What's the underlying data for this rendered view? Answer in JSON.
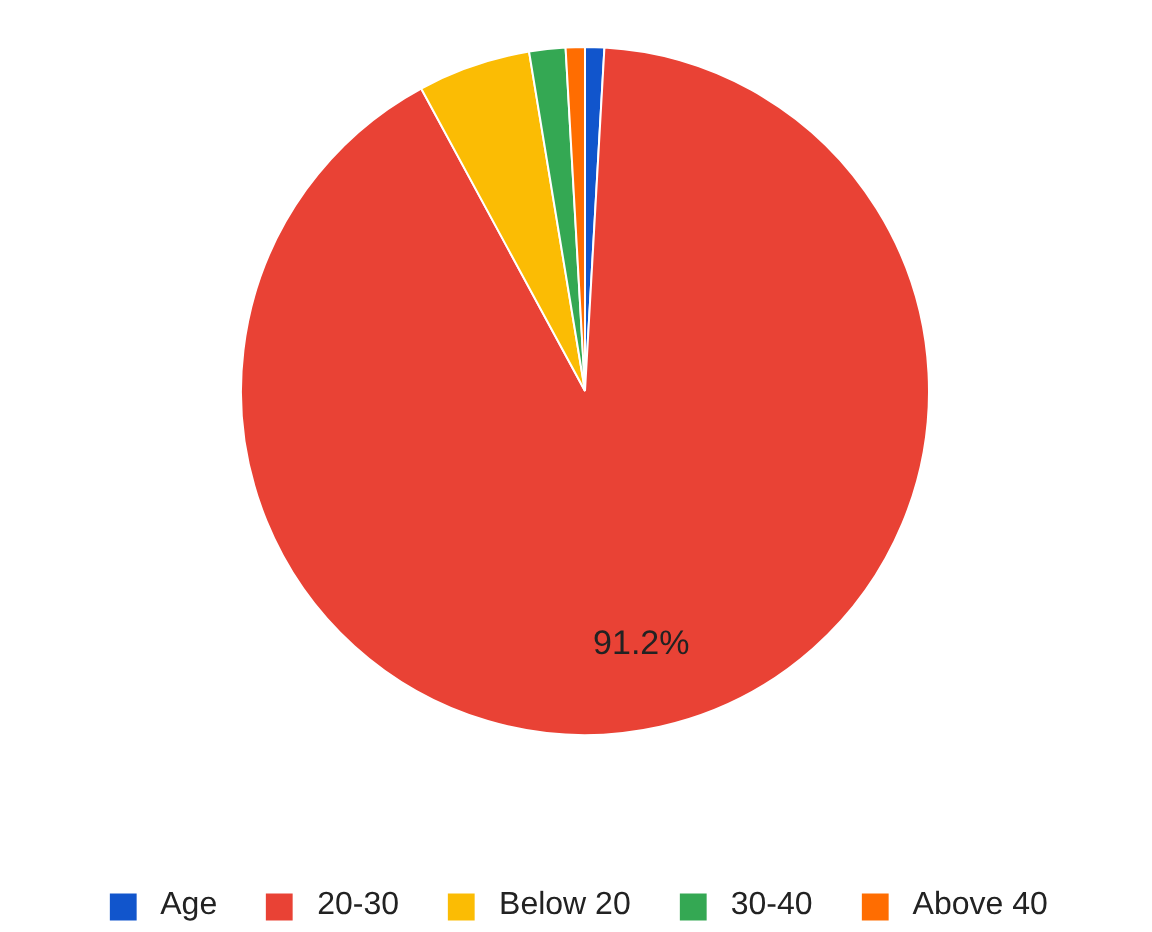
{
  "chart_data": {
    "type": "pie",
    "categories": [
      "Age",
      "20-30",
      "Below 20",
      "30-40",
      "Above 40"
    ],
    "values": [
      0.9,
      91.2,
      5.3,
      1.7,
      0.9
    ],
    "colors": [
      "#1155cc",
      "#e94235",
      "#fbbc04",
      "#34a853",
      "#ff6d01"
    ],
    "value_labels": [
      null,
      "91.2%",
      null,
      null,
      null
    ],
    "legend": "bottom"
  }
}
